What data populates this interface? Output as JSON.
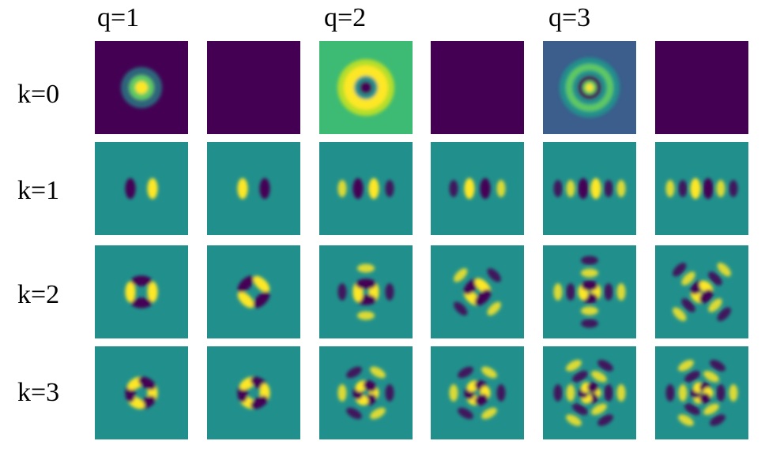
{
  "column_labels": [
    "q=1",
    "q=2",
    "q=3"
  ],
  "row_labels": [
    "k=0",
    "k=1",
    "k=2",
    "k=3"
  ],
  "colormap": {
    "dark": "#440154",
    "mid": "#21908c",
    "bright": "#fde725",
    "level_k0_q2_background": "#3dbb74",
    "level_k0_q3_background": "#3b5e8c"
  },
  "grid": {
    "rows": 4,
    "cols": 6,
    "description_per_row": [
      "k=0: radial patterns (cos column) and uniform dark (sin column)",
      "k=1: dipole patterns with q-dependent radial rings",
      "k=2: quadrupole patterns with q-dependent radial rings",
      "k=3: hexapole patterns with q-dependent radial rings"
    ]
  }
}
